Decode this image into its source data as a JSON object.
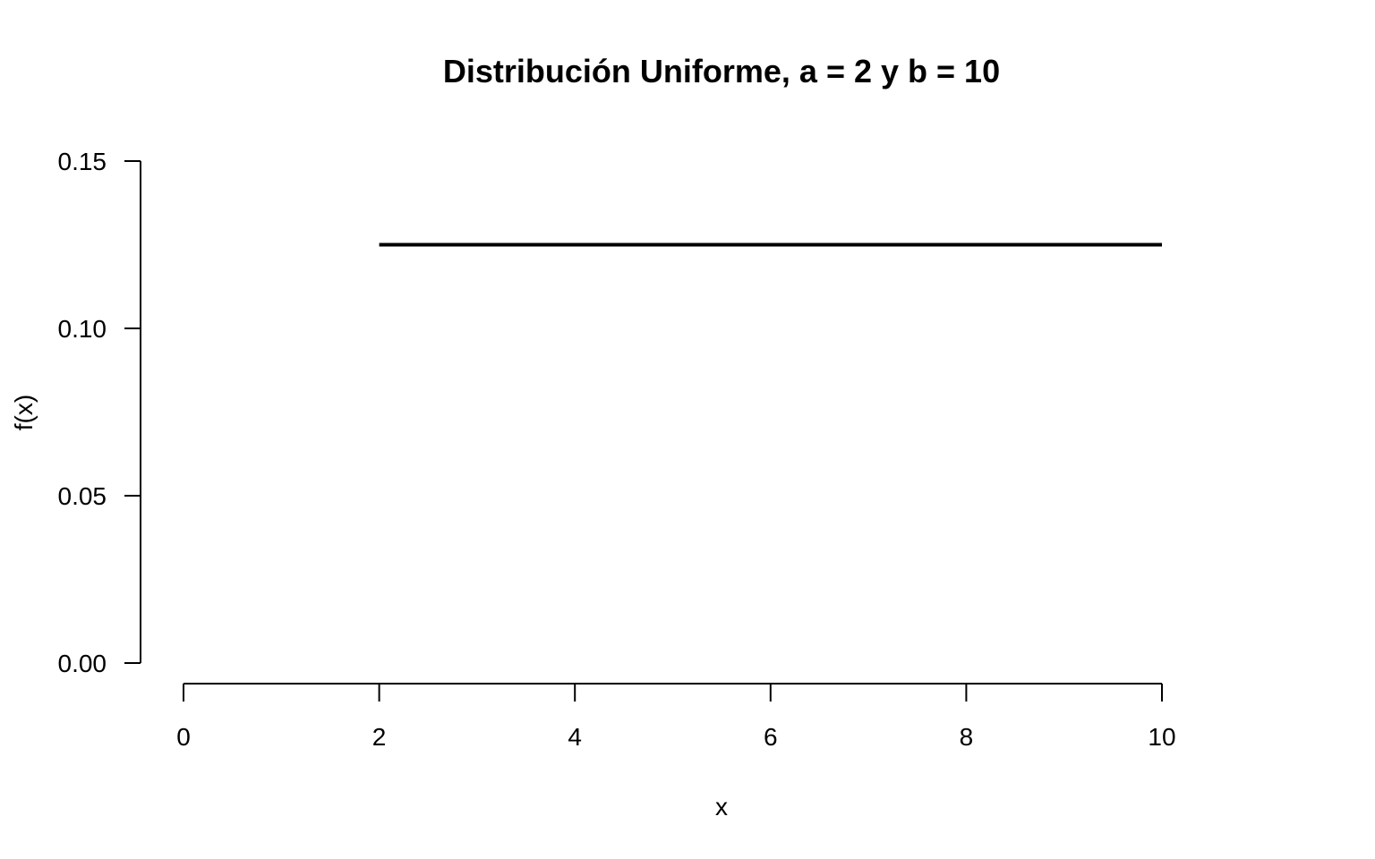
{
  "chart_data": {
    "type": "line",
    "title": "Distribución Uniforme, a = 2 y b = 10",
    "xlabel": "x",
    "ylabel": "f(x)",
    "xlim": [
      0,
      10
    ],
    "ylim": [
      0,
      0.15
    ],
    "x_ticks": [
      0,
      2,
      4,
      6,
      8,
      10
    ],
    "x_tick_labels": [
      "0",
      "2",
      "4",
      "6",
      "8",
      "10"
    ],
    "y_ticks": [
      0,
      0.05,
      0.1,
      0.15
    ],
    "y_tick_labels": [
      "0.00",
      "0.05",
      "0.10",
      "0.15"
    ],
    "grid": false,
    "series": [
      {
        "x": [
          2,
          10
        ],
        "y": [
          0.125,
          0.125
        ],
        "color": "#000000"
      }
    ]
  }
}
